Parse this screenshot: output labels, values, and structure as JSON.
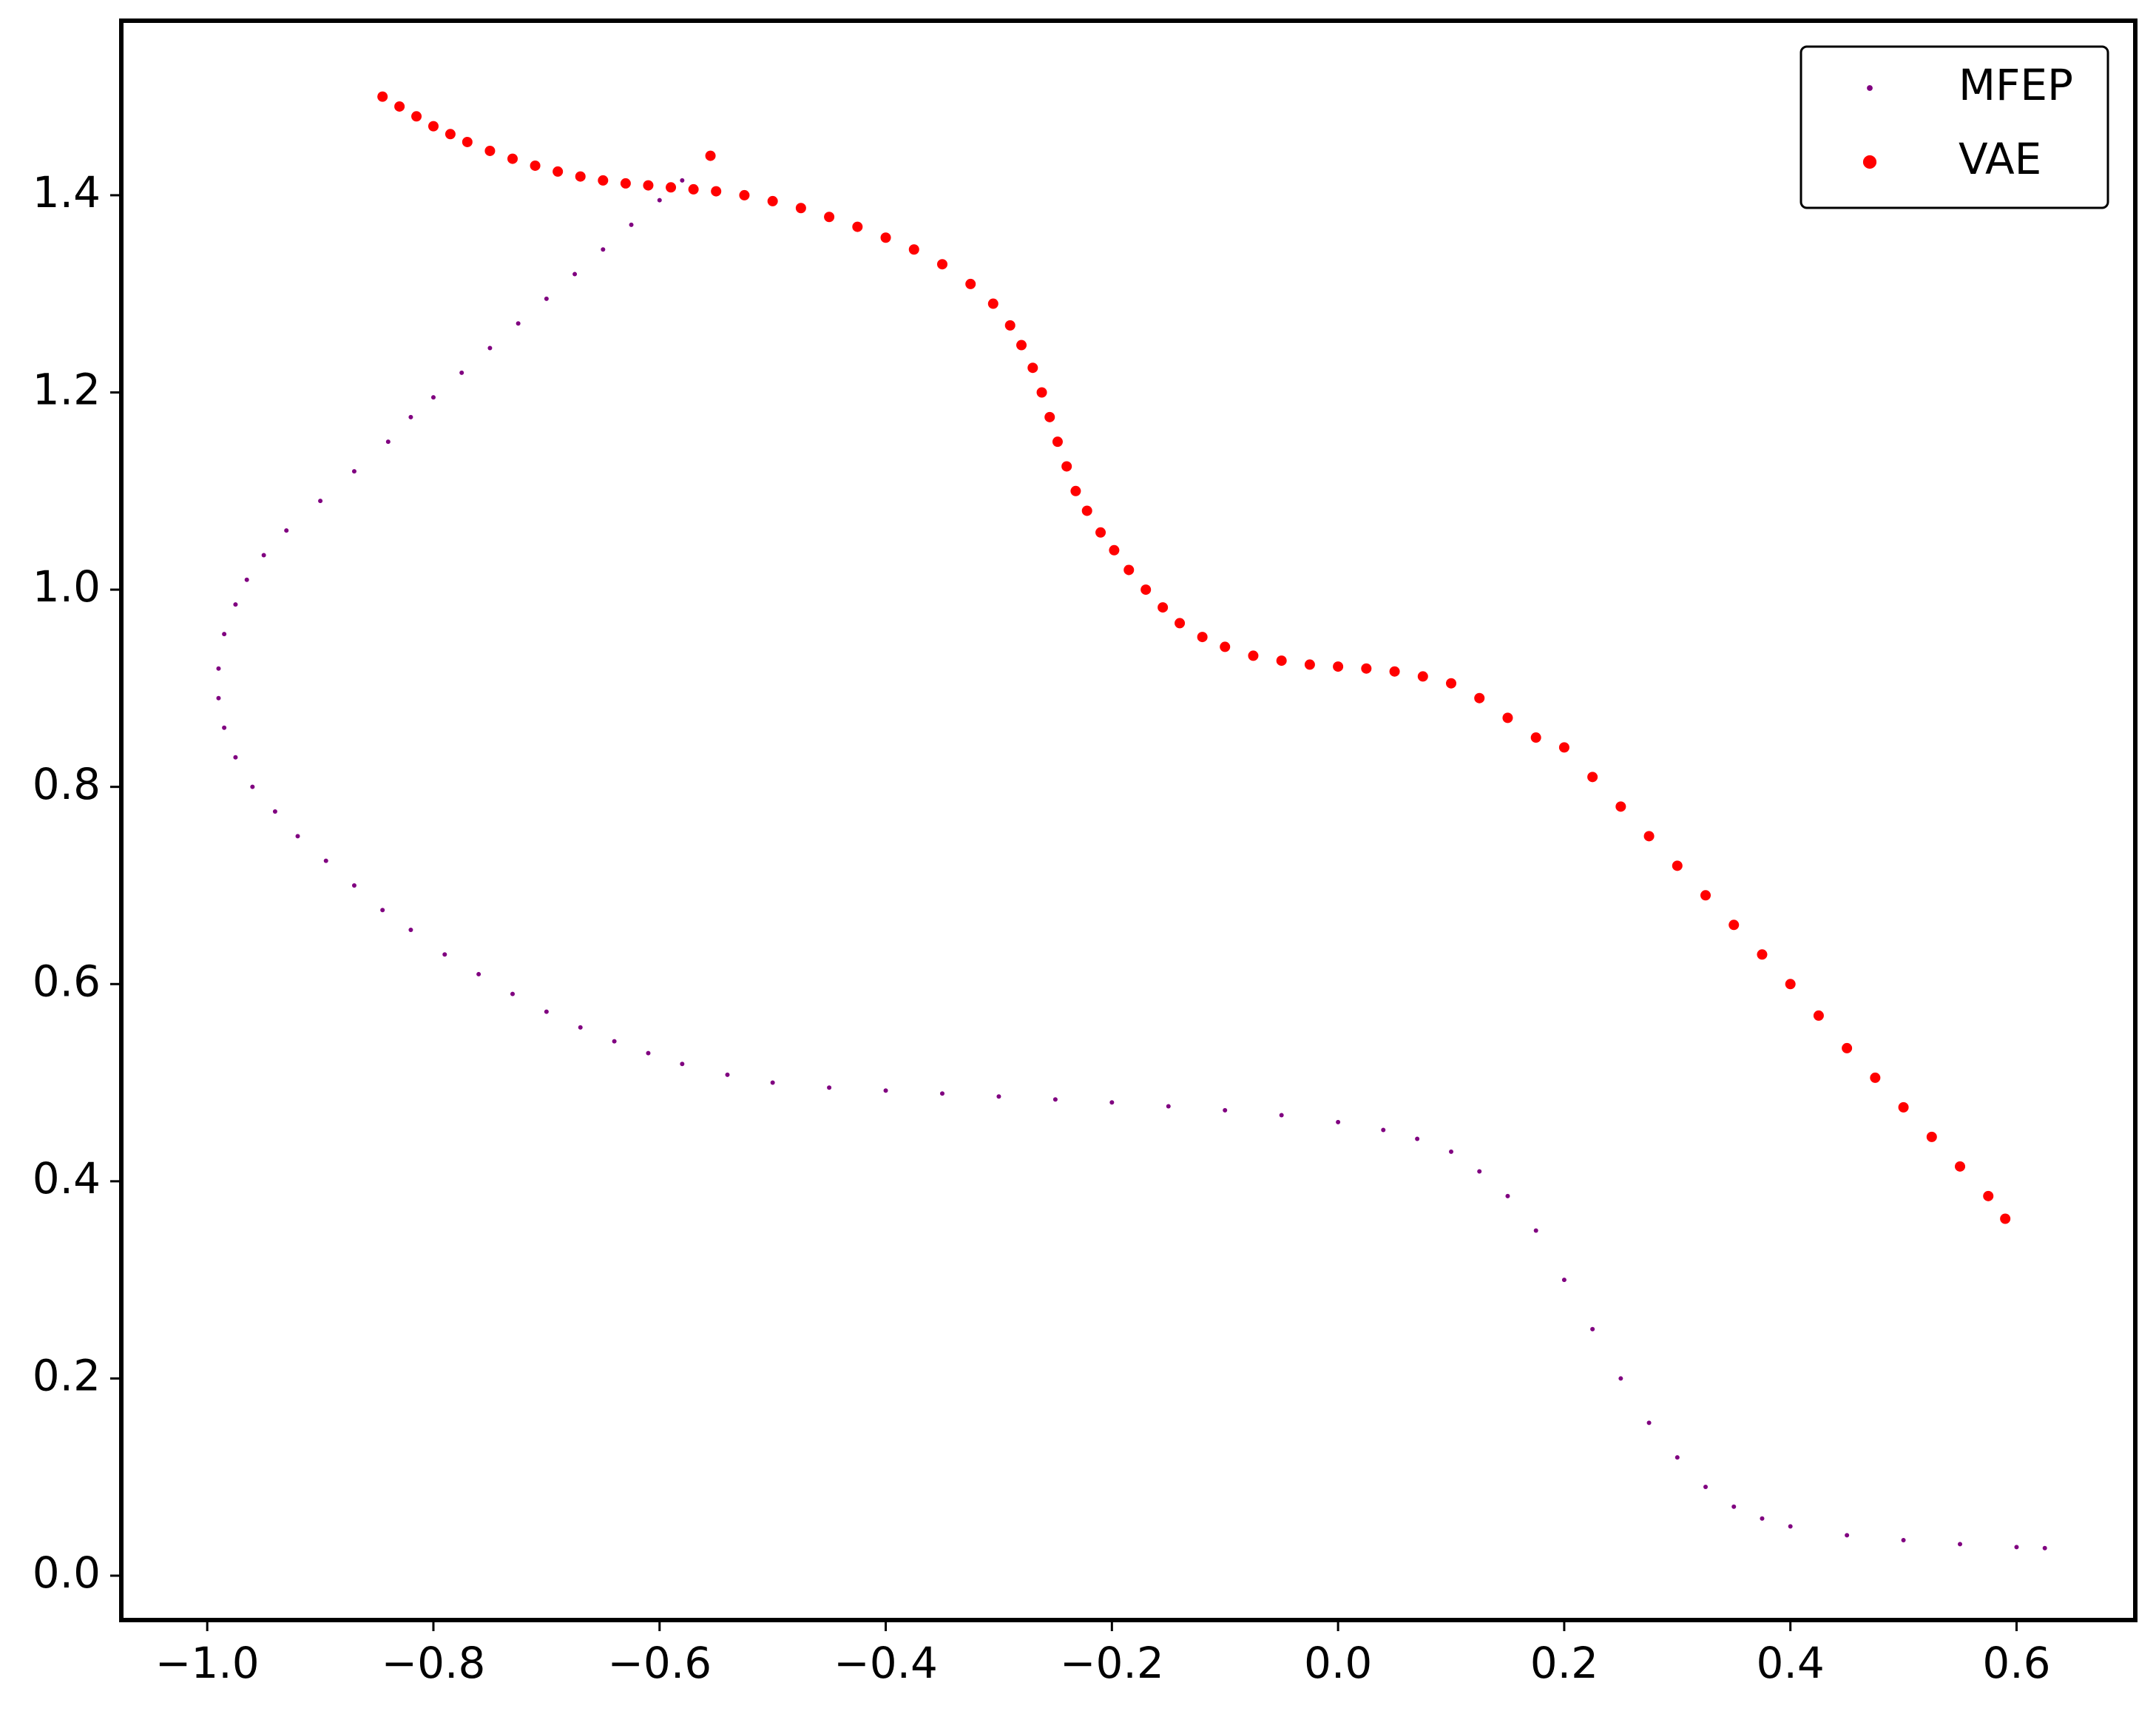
{
  "chart_data": {
    "type": "scatter",
    "xlim": [
      -1.076,
      0.705
    ],
    "ylim": [
      -0.045,
      1.577
    ],
    "xticks": [
      {
        "value": -1.0,
        "label": "−1.0"
      },
      {
        "value": -0.8,
        "label": "−0.8"
      },
      {
        "value": -0.6,
        "label": "−0.6"
      },
      {
        "value": -0.4,
        "label": "−0.4"
      },
      {
        "value": -0.2,
        "label": "−0.2"
      },
      {
        "value": 0,
        "label": "0.0"
      },
      0.2,
      0.4,
      0.6
    ],
    "yticks": [
      {
        "value": 0,
        "label": "0.0"
      },
      0.2,
      0.4,
      0.6,
      0.8,
      {
        "value": 1,
        "label": "1.0"
      },
      1.2,
      1.4
    ],
    "legend": "upper right",
    "series": [
      {
        "name": "MFEP",
        "color": "#800080",
        "size": 3,
        "x": [
          -0.555,
          -0.58,
          -0.6,
          -0.625,
          -0.65,
          -0.675,
          -0.7,
          -0.725,
          -0.75,
          -0.775,
          -0.8,
          -0.82,
          -0.84,
          -0.87,
          -0.9,
          -0.93,
          -0.95,
          -0.965,
          -0.975,
          -0.985,
          -0.99,
          -0.99,
          -0.985,
          -0.975,
          -0.96,
          -0.94,
          -0.92,
          -0.895,
          -0.87,
          -0.845,
          -0.82,
          -0.79,
          -0.76,
          -0.73,
          -0.7,
          -0.67,
          -0.64,
          -0.61,
          -0.58,
          -0.54,
          -0.5,
          -0.45,
          -0.4,
          -0.35,
          -0.3,
          -0.25,
          -0.2,
          -0.15,
          -0.1,
          -0.05,
          0,
          0.04,
          0.07,
          0.1,
          0.125,
          0.15,
          0.175,
          0.2,
          0.225,
          0.25,
          0.275,
          0.3,
          0.325,
          0.35,
          0.375,
          0.4,
          0.45,
          0.5,
          0.55,
          0.6,
          0.625
        ],
        "values": [
          1.44,
          1.415,
          1.395,
          1.37,
          1.345,
          1.32,
          1.295,
          1.27,
          1.245,
          1.22,
          1.195,
          1.175,
          1.15,
          1.12,
          1.09,
          1.06,
          1.035,
          1.01,
          0.985,
          0.955,
          0.92,
          0.89,
          0.86,
          0.83,
          0.8,
          0.775,
          0.75,
          0.725,
          0.7,
          0.675,
          0.655,
          0.63,
          0.61,
          0.59,
          0.572,
          0.556,
          0.542,
          0.53,
          0.519,
          0.508,
          0.5,
          0.495,
          0.492,
          0.489,
          0.486,
          0.483,
          0.48,
          0.476,
          0.472,
          0.467,
          0.46,
          0.452,
          0.443,
          0.43,
          0.41,
          0.385,
          0.35,
          0.3,
          0.25,
          0.2,
          0.155,
          0.12,
          0.09,
          0.07,
          0.058,
          0.05,
          0.041,
          0.036,
          0.032,
          0.029,
          0.028
        ]
      },
      {
        "name": "VAE",
        "color": "#ff0000",
        "size": 7,
        "x": [
          -0.845,
          -0.83,
          -0.815,
          -0.8,
          -0.785,
          -0.77,
          -0.75,
          -0.73,
          -0.71,
          -0.69,
          -0.67,
          -0.65,
          -0.63,
          -0.61,
          -0.59,
          -0.57,
          -0.55,
          -0.525,
          -0.5,
          -0.475,
          -0.45,
          -0.425,
          -0.4,
          -0.375,
          -0.35,
          -0.325,
          -0.305,
          -0.29,
          -0.28,
          -0.27,
          -0.262,
          -0.255,
          -0.248,
          -0.24,
          -0.232,
          -0.222,
          -0.21,
          -0.198,
          -0.185,
          -0.17,
          -0.155,
          -0.14,
          -0.12,
          -0.1,
          -0.075,
          -0.05,
          -0.025,
          0,
          0.025,
          0.05,
          0.075,
          0.1,
          0.125,
          0.15,
          0.175,
          0.2,
          0.225,
          0.25,
          0.275,
          0.3,
          0.325,
          0.35,
          0.375,
          0.4,
          0.425,
          0.45,
          0.475,
          0.5,
          0.525,
          0.55,
          0.575,
          0.59,
          -0.555
        ],
        "values": [
          1.5,
          1.49,
          1.48,
          1.47,
          1.462,
          1.454,
          1.445,
          1.437,
          1.43,
          1.424,
          1.419,
          1.415,
          1.412,
          1.41,
          1.408,
          1.406,
          1.404,
          1.4,
          1.394,
          1.387,
          1.378,
          1.368,
          1.357,
          1.345,
          1.33,
          1.31,
          1.29,
          1.268,
          1.248,
          1.225,
          1.2,
          1.175,
          1.15,
          1.125,
          1.1,
          1.08,
          1.058,
          1.04,
          1.02,
          1.0,
          0.982,
          0.966,
          0.952,
          0.942,
          0.933,
          0.928,
          0.924,
          0.922,
          0.92,
          0.917,
          0.912,
          0.905,
          0.89,
          0.87,
          0.85,
          0.84,
          0.81,
          0.78,
          0.75,
          0.72,
          0.69,
          0.66,
          0.63,
          0.6,
          0.568,
          0.535,
          0.505,
          0.475,
          0.445,
          0.415,
          0.385,
          0.362,
          1.44
        ]
      }
    ]
  }
}
